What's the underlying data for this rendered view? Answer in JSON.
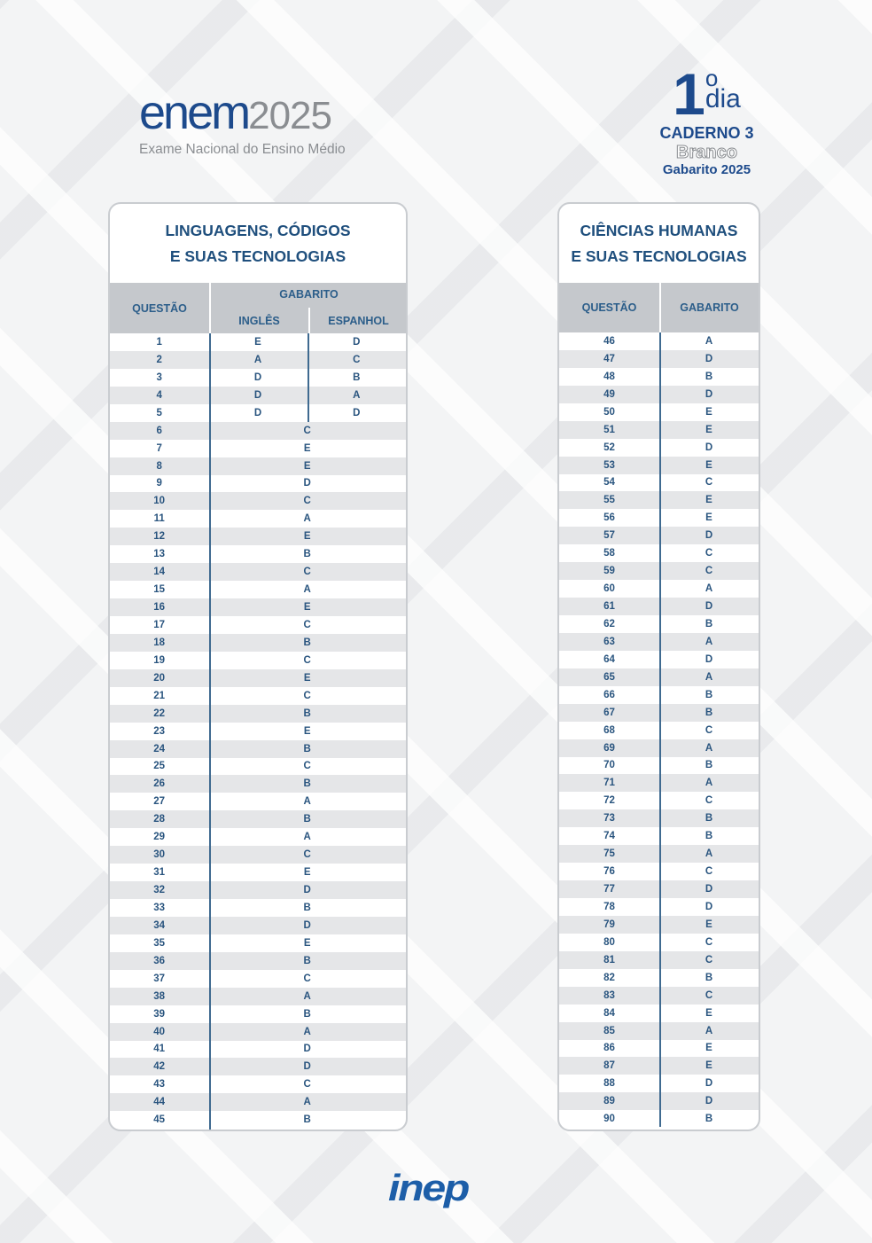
{
  "header": {
    "logo_enem": "enem",
    "logo_year": "2025",
    "logo_subtitle": "Exame Nacional do Ensino Médio",
    "day_number": "1",
    "day_ordinal": "o",
    "day_label": "dia",
    "caderno": "CADERNO 3",
    "color_name": "Branco",
    "gabarito_year": "Gabarito 2025"
  },
  "left": {
    "title_line1": "LINGUAGENS, CÓDIGOS",
    "title_line2": "E SUAS TECNOLOGIAS",
    "col_questao": "QUESTÃO",
    "col_gabarito": "GABARITO",
    "col_ingles": "INGLÊS",
    "col_espanhol": "ESPANHOL",
    "rows": [
      {
        "q": "1",
        "ingles": "E",
        "espanhol": "D"
      },
      {
        "q": "2",
        "ingles": "A",
        "espanhol": "C"
      },
      {
        "q": "3",
        "ingles": "D",
        "espanhol": "B"
      },
      {
        "q": "4",
        "ingles": "D",
        "espanhol": "A"
      },
      {
        "q": "5",
        "ingles": "D",
        "espanhol": "D"
      },
      {
        "q": "6",
        "answer": "C"
      },
      {
        "q": "7",
        "answer": "E"
      },
      {
        "q": "8",
        "answer": "E"
      },
      {
        "q": "9",
        "answer": "D"
      },
      {
        "q": "10",
        "answer": "C"
      },
      {
        "q": "11",
        "answer": "A"
      },
      {
        "q": "12",
        "answer": "E"
      },
      {
        "q": "13",
        "answer": "B"
      },
      {
        "q": "14",
        "answer": "C"
      },
      {
        "q": "15",
        "answer": "A"
      },
      {
        "q": "16",
        "answer": "E"
      },
      {
        "q": "17",
        "answer": "C"
      },
      {
        "q": "18",
        "answer": "B"
      },
      {
        "q": "19",
        "answer": "C"
      },
      {
        "q": "20",
        "answer": "E"
      },
      {
        "q": "21",
        "answer": "C"
      },
      {
        "q": "22",
        "answer": "B"
      },
      {
        "q": "23",
        "answer": "E"
      },
      {
        "q": "24",
        "answer": "B"
      },
      {
        "q": "25",
        "answer": "C"
      },
      {
        "q": "26",
        "answer": "B"
      },
      {
        "q": "27",
        "answer": "A"
      },
      {
        "q": "28",
        "answer": "B"
      },
      {
        "q": "29",
        "answer": "A"
      },
      {
        "q": "30",
        "answer": "C"
      },
      {
        "q": "31",
        "answer": "E"
      },
      {
        "q": "32",
        "answer": "D"
      },
      {
        "q": "33",
        "answer": "B"
      },
      {
        "q": "34",
        "answer": "D"
      },
      {
        "q": "35",
        "answer": "E"
      },
      {
        "q": "36",
        "answer": "B"
      },
      {
        "q": "37",
        "answer": "C"
      },
      {
        "q": "38",
        "answer": "A"
      },
      {
        "q": "39",
        "answer": "B"
      },
      {
        "q": "40",
        "answer": "A"
      },
      {
        "q": "41",
        "answer": "D"
      },
      {
        "q": "42",
        "answer": "D"
      },
      {
        "q": "43",
        "answer": "C"
      },
      {
        "q": "44",
        "answer": "A"
      },
      {
        "q": "45",
        "answer": "B"
      }
    ]
  },
  "right": {
    "title_line1": "CIÊNCIAS HUMANAS",
    "title_line2": "E SUAS TECNOLOGIAS",
    "col_questao": "QUESTÃO",
    "col_gabarito": "GABARITO",
    "rows": [
      {
        "q": "46",
        "answer": "A"
      },
      {
        "q": "47",
        "answer": "D"
      },
      {
        "q": "48",
        "answer": "B"
      },
      {
        "q": "49",
        "answer": "D"
      },
      {
        "q": "50",
        "answer": "E"
      },
      {
        "q": "51",
        "answer": "E"
      },
      {
        "q": "52",
        "answer": "D"
      },
      {
        "q": "53",
        "answer": "E"
      },
      {
        "q": "54",
        "answer": "C"
      },
      {
        "q": "55",
        "answer": "E"
      },
      {
        "q": "56",
        "answer": "E"
      },
      {
        "q": "57",
        "answer": "D"
      },
      {
        "q": "58",
        "answer": "C"
      },
      {
        "q": "59",
        "answer": "C"
      },
      {
        "q": "60",
        "answer": "A"
      },
      {
        "q": "61",
        "answer": "D"
      },
      {
        "q": "62",
        "answer": "B"
      },
      {
        "q": "63",
        "answer": "A"
      },
      {
        "q": "64",
        "answer": "D"
      },
      {
        "q": "65",
        "answer": "A"
      },
      {
        "q": "66",
        "answer": "B"
      },
      {
        "q": "67",
        "answer": "B"
      },
      {
        "q": "68",
        "answer": "C"
      },
      {
        "q": "69",
        "answer": "A"
      },
      {
        "q": "70",
        "answer": "B"
      },
      {
        "q": "71",
        "answer": "A"
      },
      {
        "q": "72",
        "answer": "C"
      },
      {
        "q": "73",
        "answer": "B"
      },
      {
        "q": "74",
        "answer": "B"
      },
      {
        "q": "75",
        "answer": "A"
      },
      {
        "q": "76",
        "answer": "C"
      },
      {
        "q": "77",
        "answer": "D"
      },
      {
        "q": "78",
        "answer": "D"
      },
      {
        "q": "79",
        "answer": "E"
      },
      {
        "q": "80",
        "answer": "C"
      },
      {
        "q": "81",
        "answer": "C"
      },
      {
        "q": "82",
        "answer": "B"
      },
      {
        "q": "83",
        "answer": "C"
      },
      {
        "q": "84",
        "answer": "E"
      },
      {
        "q": "85",
        "answer": "A"
      },
      {
        "q": "86",
        "answer": "E"
      },
      {
        "q": "87",
        "answer": "E"
      },
      {
        "q": "88",
        "answer": "D"
      },
      {
        "q": "89",
        "answer": "D"
      },
      {
        "q": "90",
        "answer": "B"
      }
    ]
  },
  "footer": {
    "logo_inep": "inep"
  },
  "colors": {
    "brand_blue": "#1d4a8c",
    "text_navy": "#2a557f",
    "header_gray": "#c5c8cc",
    "stripe_gray": "#e5e6e8"
  }
}
